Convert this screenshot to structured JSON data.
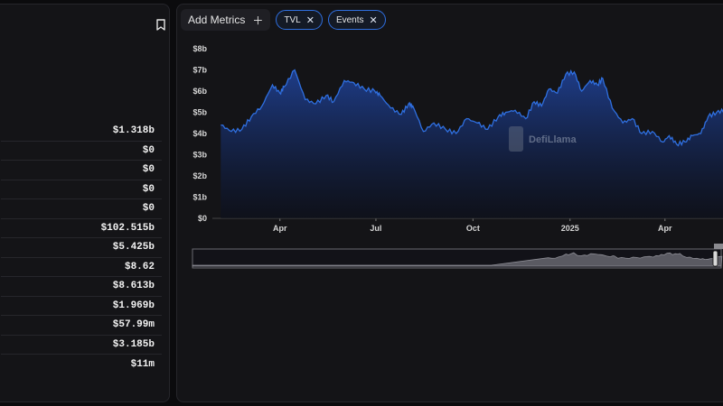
{
  "left_panel": {
    "metric_values": [
      "$1.318b",
      "$0",
      "$0",
      "$0",
      "$0",
      "$102.515b",
      "$5.425b",
      "$8.62",
      "$8.613b",
      "$1.969b",
      "$57.99m",
      "$3.185b",
      "$11m"
    ]
  },
  "toolbar": {
    "add_metrics_label": "Add Metrics",
    "chips": [
      {
        "label": "TVL"
      },
      {
        "label": "Events"
      }
    ]
  },
  "watermark": "DefiLlama",
  "colors": {
    "line": "#2f6fe0",
    "panel": "#141417",
    "accent": "#2f6fe0"
  },
  "chart_data": {
    "type": "area",
    "ylim": [
      0,
      8
    ],
    "ytick_labels": [
      "$0",
      "$1b",
      "$2b",
      "$3b",
      "$4b",
      "$5b",
      "$6b",
      "$7b",
      "$8b"
    ],
    "xtick_labels": [
      "Apr",
      "Jul",
      "Oct",
      "2025",
      "Apr"
    ],
    "series": [
      {
        "x": [
          "2024-02-05",
          "2024-02-15",
          "2024-02-25",
          "2024-03-05",
          "2024-03-15",
          "2024-03-25",
          "2024-04-01",
          "2024-04-05",
          "2024-04-15",
          "2024-04-25",
          "2024-05-05",
          "2024-05-15",
          "2024-05-22",
          "2024-06-01",
          "2024-06-10",
          "2024-06-20",
          "2024-06-30",
          "2024-07-05",
          "2024-07-15",
          "2024-07-25",
          "2024-08-01",
          "2024-08-05",
          "2024-08-15",
          "2024-08-25",
          "2024-09-05",
          "2024-09-15",
          "2024-09-25",
          "2024-10-05",
          "2024-10-15",
          "2024-10-25",
          "2024-11-01",
          "2024-11-10",
          "2024-11-20",
          "2024-11-28",
          "2024-12-05",
          "2024-12-12",
          "2024-12-20",
          "2024-12-28",
          "2025-01-05",
          "2025-01-12",
          "2025-01-20",
          "2025-01-27",
          "2025-02-01",
          "2025-02-10",
          "2025-02-20",
          "2025-03-01",
          "2025-03-10",
          "2025-03-20",
          "2025-03-30",
          "2025-04-05",
          "2025-04-12",
          "2025-04-20",
          "2025-04-27",
          "2025-05-05",
          "2025-05-12",
          "2025-05-20",
          "2025-05-28"
        ],
        "values": [
          4.4,
          4.1,
          4.2,
          4.8,
          5.3,
          6.3,
          5.9,
          6.2,
          7.0,
          5.6,
          5.4,
          5.8,
          5.5,
          6.5,
          6.4,
          6.1,
          6.0,
          5.8,
          5.2,
          4.9,
          5.4,
          5.3,
          4.1,
          4.5,
          4.2,
          4.0,
          4.7,
          4.5,
          4.2,
          4.8,
          5.0,
          5.1,
          4.7,
          5.5,
          5.3,
          6.1,
          5.9,
          6.8,
          6.9,
          6.0,
          6.5,
          6.3,
          6.6,
          5.2,
          4.5,
          4.7,
          4.0,
          4.1,
          3.6,
          3.9,
          3.5,
          3.6,
          3.9,
          4.0,
          4.8,
          5.0,
          5.1
        ]
      }
    ]
  }
}
